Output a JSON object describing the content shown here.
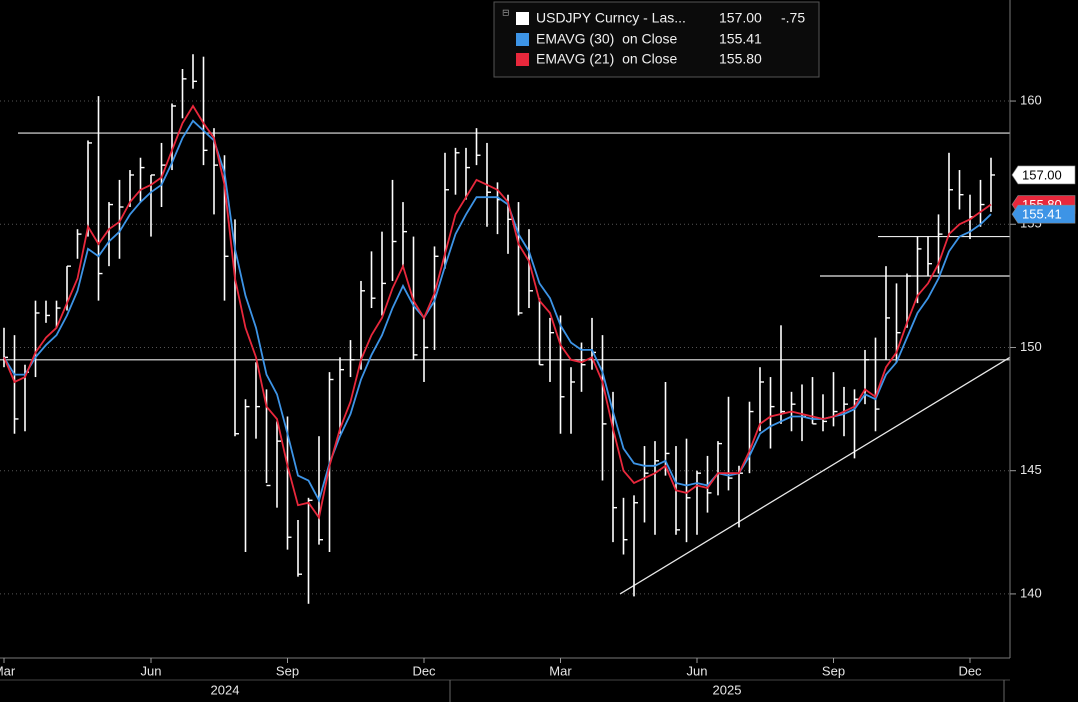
{
  "chart_data": {
    "type": "price-bars",
    "categories": [
      "Mar",
      null,
      null,
      null,
      null,
      null,
      null,
      null,
      null,
      null,
      null,
      null,
      null,
      null,
      "Jun",
      null,
      null,
      null,
      null,
      null,
      null,
      null,
      null,
      null,
      null,
      null,
      null,
      "Sep",
      null,
      null,
      null,
      null,
      null,
      null,
      null,
      null,
      null,
      null,
      null,
      null,
      "Dec",
      null,
      null,
      null,
      null,
      null,
      null,
      null,
      null,
      null,
      null,
      null,
      null,
      "Mar",
      null,
      null,
      null,
      null,
      null,
      null,
      null,
      null,
      null,
      null,
      null,
      null,
      "Jun",
      null,
      null,
      null,
      null,
      null,
      null,
      null,
      null,
      null,
      null,
      null,
      null,
      "Sep",
      null,
      null,
      null,
      null,
      null,
      null,
      null,
      null,
      null,
      null,
      null,
      null,
      "Dec",
      null,
      null
    ],
    "x_groups": [
      "2024",
      "2025"
    ],
    "series": [
      {
        "name": "USDJPY Curncy - Las...",
        "color": "#ffffff",
        "last_label": "157.00",
        "change_label": "-.75",
        "high": [
          150.8,
          150.5,
          149.3,
          151.9,
          151.9,
          151.9,
          153.3,
          154.8,
          158.4,
          160.2,
          155.9,
          156.8,
          157.2,
          157.7,
          157.0,
          158.3,
          159.9,
          161.3,
          161.9,
          161.8,
          158.9,
          157.8,
          155.2,
          147.9,
          149.4,
          148.3,
          147.0,
          147.2,
          143.0,
          143.9,
          146.4,
          149.0,
          149.6,
          150.3,
          152.7,
          153.9,
          154.7,
          156.8,
          155.9,
          154.5,
          151.2,
          154.1,
          157.9,
          158.1,
          158.1,
          158.9,
          158.3,
          156.7,
          156.2,
          155.9,
          154.8,
          152.0,
          151.2,
          151.3,
          149.2,
          150.2,
          151.2,
          150.5,
          148.2,
          143.9,
          144.0,
          146.0,
          146.2,
          148.6,
          146.0,
          146.3,
          145.0,
          145.6,
          146.2,
          148.0,
          145.2,
          147.8,
          149.2,
          148.8,
          150.9,
          148.2,
          148.5,
          148.8,
          148.1,
          149.0,
          148.4,
          148.3,
          149.9,
          150.4,
          153.3,
          152.6,
          153.0,
          154.5,
          154.5,
          155.4,
          157.9,
          157.2,
          156.2,
          156.8,
          157.7
        ],
        "low": [
          149.2,
          146.5,
          146.6,
          148.8,
          151.0,
          150.8,
          151.5,
          153.6,
          154.5,
          151.9,
          153.3,
          153.6,
          155.7,
          155.9,
          154.5,
          155.7,
          157.2,
          159.3,
          160.5,
          157.4,
          155.4,
          151.9,
          146.4,
          141.7,
          146.3,
          144.5,
          143.5,
          141.8,
          140.7,
          139.6,
          142.0,
          141.7,
          146.5,
          148.8,
          149.1,
          151.6,
          151.3,
          152.7,
          153.3,
          149.5,
          148.6,
          149.9,
          153.2,
          156.2,
          156.0,
          157.4,
          154.9,
          154.6,
          153.8,
          151.3,
          151.6,
          149.3,
          148.6,
          146.5,
          146.5,
          148.2,
          149.1,
          144.6,
          142.1,
          141.6,
          139.9,
          142.9,
          142.4,
          144.8,
          142.4,
          142.1,
          142.4,
          143.3,
          144.0,
          144.2,
          142.7,
          144.9,
          146.6,
          145.9,
          146.9,
          146.6,
          146.2,
          146.9,
          146.6,
          146.8,
          146.4,
          145.5,
          147.7,
          146.6,
          149.5,
          149.4,
          150.8,
          151.8,
          152.9,
          153.0,
          154.5,
          155.6,
          154.4,
          154.9,
          155.5
        ],
        "values": [
          149.6,
          147.1,
          149.0,
          151.4,
          151.3,
          151.6,
          153.3,
          154.6,
          158.3,
          153.0,
          155.8,
          155.7,
          157.0,
          157.3,
          157.0,
          157.4,
          159.8,
          160.9,
          160.8,
          158.0,
          157.4,
          153.7,
          146.5,
          147.6,
          147.6,
          144.4,
          146.2,
          142.3,
          140.8,
          143.8,
          142.2,
          148.7,
          149.1,
          149.5,
          152.3,
          152.0,
          152.6,
          154.3,
          154.7,
          149.7,
          150.0,
          153.7,
          156.4,
          157.9,
          157.3,
          157.8,
          156.3,
          156.0,
          155.2,
          151.4,
          152.3,
          149.3,
          150.6,
          148.0,
          148.6,
          149.3,
          149.8,
          146.9,
          143.5,
          142.2,
          143.7,
          144.9,
          145.4,
          145.7,
          142.6,
          143.9,
          144.9,
          144.1,
          146.1,
          144.7,
          144.9,
          147.4,
          148.6,
          147.6,
          147.4,
          147.7,
          147.2,
          146.9,
          147.0,
          147.4,
          147.7,
          147.9,
          149.5,
          147.5,
          151.2,
          150.6,
          152.9,
          154.0,
          153.4,
          154.6,
          156.4,
          156.2,
          155.3,
          155.8,
          157.0
        ]
      },
      {
        "name": "EMAVG (30)  on Close",
        "color": "#3d94e6",
        "last_label": "155.41",
        "values": [
          149.6,
          148.9,
          148.9,
          149.6,
          150.1,
          150.5,
          151.3,
          152.3,
          154.0,
          153.7,
          154.3,
          154.7,
          155.4,
          155.9,
          156.3,
          156.6,
          157.5,
          158.5,
          159.2,
          158.8,
          158.4,
          157.1,
          154.0,
          152.1,
          150.8,
          148.9,
          148.1,
          146.5,
          144.8,
          144.6,
          143.8,
          145.3,
          146.4,
          147.3,
          148.7,
          149.7,
          150.5,
          151.6,
          152.5,
          151.7,
          151.2,
          151.9,
          153.3,
          154.6,
          155.4,
          156.1,
          156.1,
          156.1,
          155.8,
          154.6,
          153.9,
          152.6,
          152.0,
          150.9,
          150.2,
          149.9,
          149.9,
          149.0,
          147.4,
          145.9,
          145.3,
          145.2,
          145.2,
          145.4,
          144.5,
          144.4,
          144.5,
          144.4,
          144.9,
          144.8,
          144.9,
          145.6,
          146.5,
          146.8,
          147.0,
          147.2,
          147.2,
          147.1,
          147.1,
          147.2,
          147.3,
          147.5,
          148.1,
          147.9,
          148.9,
          149.4,
          150.4,
          151.4,
          152.0,
          152.8,
          153.9,
          154.5,
          154.7,
          155.0,
          155.41
        ]
      },
      {
        "name": "EMAVG (21)  on Close",
        "color": "#e8283c",
        "last_label": "155.80",
        "values": [
          149.6,
          148.6,
          148.8,
          149.8,
          150.4,
          150.8,
          151.8,
          152.8,
          154.9,
          154.2,
          154.8,
          155.1,
          155.9,
          156.4,
          156.6,
          156.9,
          158.0,
          159.1,
          159.8,
          159.1,
          158.5,
          156.6,
          152.8,
          150.8,
          149.6,
          147.6,
          147.1,
          145.2,
          143.6,
          143.7,
          143.1,
          145.2,
          146.7,
          147.8,
          149.5,
          150.5,
          151.2,
          152.4,
          153.3,
          151.9,
          151.2,
          152.2,
          153.8,
          155.4,
          156.1,
          156.8,
          156.6,
          156.4,
          155.9,
          154.2,
          153.5,
          151.9,
          151.4,
          150.1,
          149.5,
          149.4,
          149.6,
          148.6,
          146.7,
          145.0,
          144.5,
          144.7,
          144.9,
          145.2,
          144.2,
          144.1,
          144.4,
          144.3,
          144.9,
          144.9,
          144.9,
          145.8,
          146.9,
          147.2,
          147.3,
          147.4,
          147.3,
          147.2,
          147.1,
          147.2,
          147.4,
          147.6,
          148.3,
          148.0,
          149.2,
          149.8,
          151.0,
          152.1,
          152.6,
          153.4,
          154.6,
          155.0,
          155.2,
          155.5,
          155.8
        ]
      }
    ],
    "ylim": [
      137.4,
      164.1
    ],
    "yticks": [
      140,
      145,
      150,
      155,
      160
    ],
    "grid": true,
    "hlines": [
      158.7,
      149.5,
      154.5,
      152.9
    ],
    "trendline": [
      140.0,
      149.6
    ]
  }
}
